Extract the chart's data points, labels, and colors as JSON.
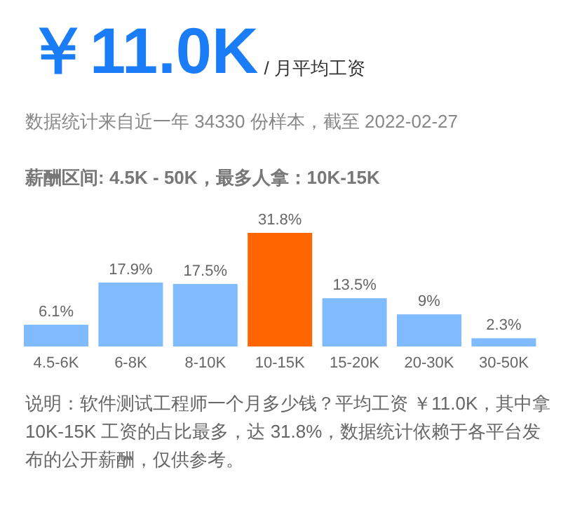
{
  "chart_data": {
    "type": "bar",
    "title": "￥11.0K",
    "subtitle": "/ 月平均工资",
    "annotations": [
      "数据统计来自近一年 34330 份样本，截至 2022-02-27",
      "薪酬区间: 4.5K - 50K，最多人拿：10K-15K",
      "说明：软件测试工程师一个月多少钱？平均工资 ￥11.0K，其中拿 10K-15K 工资的占比最多，达 31.8%，数据统计依赖于各平台发布的公开薪酬，仅供参考。"
    ],
    "categories": [
      "4.5-6K",
      "6-8K",
      "8-10K",
      "10-15K",
      "15-20K",
      "20-30K",
      "30-50K"
    ],
    "values": [
      6.1,
      17.9,
      17.5,
      31.8,
      13.5,
      9,
      2.3
    ],
    "value_labels": [
      "6.1%",
      "17.9%",
      "17.5%",
      "31.8%",
      "13.5%",
      "9%",
      "2.3%"
    ],
    "colors": [
      "#80bbff",
      "#80bbff",
      "#80bbff",
      "#ff6600",
      "#80bbff",
      "#80bbff",
      "#80bbff"
    ]
  }
}
